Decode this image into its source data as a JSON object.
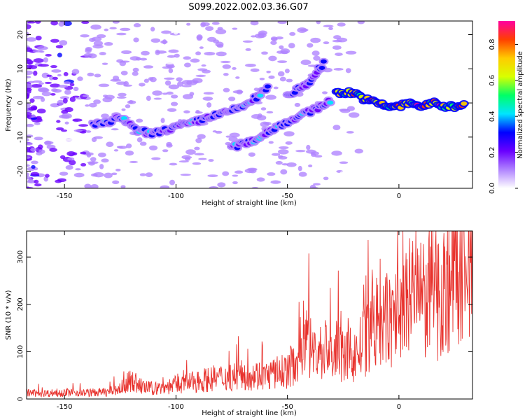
{
  "title": "S099.2022.002.03.36.G07",
  "chart_data": [
    {
      "type": "heatmap",
      "xlabel": "Height of straight line (km)",
      "ylabel": "Frequency (Hz)",
      "xlim": [
        -167,
        33
      ],
      "ylim": [
        -25,
        24
      ],
      "xticks": [
        -150,
        -100,
        -50,
        0
      ],
      "yticks": [
        -20,
        -10,
        0,
        10,
        20
      ],
      "colorbar": {
        "label": "Normalized spectral amplitude",
        "range": [
          0,
          0.93
        ],
        "ticks": [
          0.0,
          0.2,
          0.4,
          0.6,
          0.8
        ],
        "colors": [
          "#ffffff",
          "#b084ff",
          "#6a00ff",
          "#0000ff",
          "#00e5ff",
          "#00ff66",
          "#d8ff00",
          "#ffcc00",
          "#ff4000",
          "#ff00a0"
        ]
      },
      "features": [
        {
          "name": "lower-left band",
          "x": [
            -137,
            -130,
            -125,
            -118,
            -110,
            -100,
            -93,
            -85,
            -78,
            -70,
            -63,
            -58
          ],
          "y": [
            -6,
            -6,
            -4,
            -8,
            -9,
            -7,
            -6,
            -4,
            -3,
            -1,
            2,
            5
          ],
          "amplitude": 0.35
        },
        {
          "name": "lower rising band",
          "x": [
            -75,
            -65,
            -55,
            -45,
            -38,
            -30
          ],
          "y": [
            -13,
            -11,
            -7,
            -4,
            -2,
            1
          ],
          "amplitude": 0.35
        },
        {
          "name": "upper rising band",
          "x": [
            -50,
            -45,
            -40,
            -36,
            -33
          ],
          "y": [
            2,
            4,
            6,
            10,
            12
          ],
          "amplitude": 0.3
        },
        {
          "name": "flat band",
          "x": [
            -28,
            -20,
            -15,
            -10,
            -5,
            0,
            5,
            10,
            15,
            20,
            25,
            30
          ],
          "y": [
            3,
            3,
            1,
            0,
            -1,
            -1,
            0,
            -1,
            0,
            -1,
            -1,
            0
          ],
          "amplitude": 0.85
        }
      ]
    },
    {
      "type": "line",
      "xlabel": "Height of straight line (km)",
      "ylabel": "SNR (10 * v/v)",
      "xlim": [
        -167,
        33
      ],
      "ylim": [
        0,
        355
      ],
      "xticks": [
        -150,
        -100,
        -50,
        0
      ],
      "yticks": [
        0,
        100,
        200,
        300
      ],
      "color": "#e8332e",
      "series": [
        {
          "x": [
            -167,
            -160,
            -150,
            -140,
            -130,
            -125,
            -120,
            -115,
            -110,
            -105,
            -100,
            -95,
            -90,
            -85,
            -80,
            -75,
            -70,
            -65,
            -60,
            -55,
            -50,
            -45,
            -42,
            -40,
            -37,
            -35,
            -32,
            -30,
            -27,
            -25,
            -22,
            -20,
            -17,
            -15,
            -12,
            -10,
            -7,
            -5,
            -2,
            0,
            3,
            5,
            8,
            10,
            15,
            18,
            20,
            25,
            30,
            33
          ],
          "y": [
            13,
            12,
            14,
            13,
            15,
            22,
            40,
            25,
            22,
            25,
            30,
            33,
            38,
            42,
            45,
            48,
            50,
            52,
            48,
            55,
            60,
            90,
            150,
            110,
            95,
            100,
            110,
            90,
            105,
            85,
            95,
            90,
            110,
            120,
            140,
            160,
            150,
            170,
            165,
            180,
            200,
            210,
            230,
            200,
            240,
            220,
            230,
            280,
            315,
            330
          ]
        }
      ]
    }
  ]
}
